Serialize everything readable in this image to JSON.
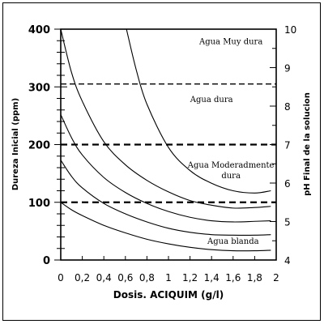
{
  "chart_data": {
    "type": "line",
    "title": "",
    "xlabel": "Dosis. ACIQUIM (g/l)",
    "ylabel": "Dureza Inicial (ppm)",
    "y2label": "pH Final de la solucion",
    "xlim": [
      0,
      2
    ],
    "ylim": [
      0,
      400
    ],
    "y2lim": [
      4,
      10
    ],
    "grid": false,
    "x_ticks": [
      0,
      0.2,
      0.4,
      0.6,
      0.8,
      1,
      1.2,
      1.4,
      1.6,
      1.8,
      2
    ],
    "x_tick_labels": [
      "0",
      "0,2",
      "0,4",
      "0,6",
      "0,8",
      "1",
      "1,2",
      "1,4",
      "1,6",
      "1,8",
      "2"
    ],
    "y_ticks": [
      0,
      100,
      200,
      300,
      400
    ],
    "y_tick_labels": [
      "0",
      "100",
      "200",
      "300",
      "400"
    ],
    "y2_ticks": [
      4,
      5,
      6,
      7,
      8,
      9,
      10
    ],
    "y2_tick_labels": [
      "4",
      "5",
      "6",
      "7",
      "8",
      "9",
      "10"
    ],
    "thresholds": [
      {
        "y": 100,
        "style": "dashed-bold"
      },
      {
        "y": 200,
        "style": "dashed-bold"
      },
      {
        "y": 305,
        "style": "dashed"
      }
    ],
    "zones": [
      {
        "label_lines": [
          "Agua Muy dura"
        ],
        "x": 1.58,
        "y": 374
      },
      {
        "label_lines": [
          "Agua dura"
        ],
        "x": 1.4,
        "y": 274
      },
      {
        "label_lines": [
          "Agua Moderadmente",
          "dura"
        ],
        "x": 1.58,
        "y": 160
      },
      {
        "label_lines": [
          "Agua blanda"
        ],
        "x": 1.6,
        "y": 28
      }
    ],
    "series": [
      {
        "x": [
          0,
          0.1,
          0.2,
          0.4,
          0.6,
          0.8,
          1.0,
          1.2,
          1.4,
          1.6,
          1.8,
          1.95
        ],
        "y": [
          100,
          87,
          77,
          60,
          47,
          36,
          28,
          22,
          18,
          16,
          16,
          17
        ]
      },
      {
        "x": [
          0,
          0.1,
          0.2,
          0.4,
          0.6,
          0.8,
          1.0,
          1.2,
          1.4,
          1.6,
          1.8,
          1.95
        ],
        "y": [
          173,
          145,
          125,
          98,
          80,
          66,
          55,
          48,
          44,
          43,
          43,
          44
        ]
      },
      {
        "x": [
          0,
          0.1,
          0.2,
          0.4,
          0.6,
          0.8,
          1.0,
          1.2,
          1.4,
          1.6,
          1.8,
          1.95
        ],
        "y": [
          252,
          212,
          182,
          143,
          117,
          98,
          84,
          74,
          68,
          66,
          67,
          68
        ]
      },
      {
        "x": [
          0,
          0.1,
          0.2,
          0.4,
          0.6,
          0.8,
          1.0,
          1.2,
          1.4,
          1.6,
          1.8,
          1.95
        ],
        "y": [
          400,
          325,
          275,
          205,
          165,
          138,
          118,
          103,
          95,
          90,
          91,
          93
        ]
      },
      {
        "x": [
          0.61,
          0.7,
          0.8,
          1.0,
          1.2,
          1.4,
          1.6,
          1.8,
          1.95
        ],
        "y": [
          400,
          330,
          270,
          195,
          155,
          133,
          120,
          116,
          120
        ]
      }
    ]
  }
}
